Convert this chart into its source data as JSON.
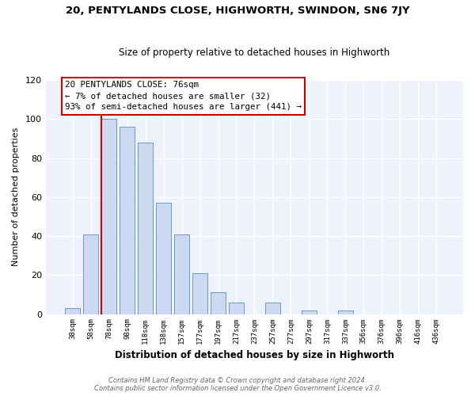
{
  "title": "20, PENTYLANDS CLOSE, HIGHWORTH, SWINDON, SN6 7JY",
  "subtitle": "Size of property relative to detached houses in Highworth",
  "xlabel": "Distribution of detached houses by size in Highworth",
  "ylabel": "Number of detached properties",
  "bar_labels": [
    "38sqm",
    "58sqm",
    "78sqm",
    "98sqm",
    "118sqm",
    "138sqm",
    "157sqm",
    "177sqm",
    "197sqm",
    "217sqm",
    "237sqm",
    "257sqm",
    "277sqm",
    "297sqm",
    "317sqm",
    "337sqm",
    "356sqm",
    "376sqm",
    "396sqm",
    "416sqm",
    "436sqm"
  ],
  "bar_values": [
    3,
    41,
    100,
    96,
    88,
    57,
    41,
    21,
    11,
    6,
    0,
    6,
    0,
    2,
    0,
    2,
    0,
    0,
    0,
    0,
    0
  ],
  "bar_color": "#ccd9f0",
  "bar_edge_color": "#6699cc",
  "highlight_color": "#cc0000",
  "red_line_x": 1.575,
  "ylim": [
    0,
    120
  ],
  "yticks": [
    0,
    20,
    40,
    60,
    80,
    100,
    120
  ],
  "annotation_title": "20 PENTYLANDS CLOSE: 76sqm",
  "annotation_line1": "← 7% of detached houses are smaller (32)",
  "annotation_line2": "93% of semi-detached houses are larger (441) →",
  "annotation_box_color": "#ffffff",
  "annotation_border_color": "#cc0000",
  "footer_line1": "Contains HM Land Registry data © Crown copyright and database right 2024.",
  "footer_line2": "Contains public sector information licensed under the Open Government Licence v3.0.",
  "background_color": "#ffffff",
  "plot_bg_color": "#eef2fc",
  "grid_color": "#ffffff",
  "title_fontsize": 9.5,
  "subtitle_fontsize": 8.5
}
